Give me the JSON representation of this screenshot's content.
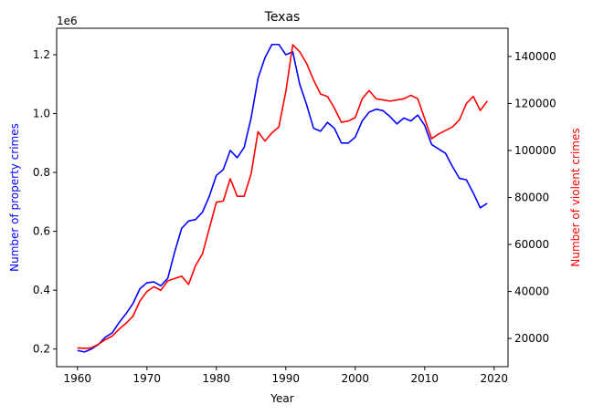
{
  "chart_data": {
    "type": "line",
    "title": "Texas",
    "xlabel": "Year",
    "ylabel_left": "Number of property crimes",
    "ylabel_right": "Number of violent crimes",
    "left_axis_offset_text": "1e6",
    "left_color": "#0000ff",
    "right_color": "#ff0000",
    "xlim": [
      1957,
      2022
    ],
    "ylim_left": [
      0.14,
      1.29
    ],
    "ylim_right": [
      8000,
      152000
    ],
    "xticks": [
      1960,
      1970,
      1980,
      1990,
      2000,
      2010,
      2020
    ],
    "xtick_labels": [
      "1960",
      "1970",
      "1980",
      "1990",
      "2000",
      "2010",
      "2020"
    ],
    "yticks_left": [
      0.2,
      0.4,
      0.6,
      0.8,
      1.0,
      1.2
    ],
    "ytick_labels_left": [
      "0.2",
      "0.4",
      "0.6",
      "0.8",
      "1.0",
      "1.2"
    ],
    "yticks_right": [
      20000,
      40000,
      60000,
      80000,
      100000,
      120000,
      140000
    ],
    "ytick_labels_right": [
      "20000",
      "40000",
      "60000",
      "80000",
      "100000",
      "120000",
      "140000"
    ],
    "grid": false,
    "x": [
      1960,
      1961,
      1962,
      1963,
      1964,
      1965,
      1966,
      1967,
      1968,
      1969,
      1970,
      1971,
      1972,
      1973,
      1974,
      1975,
      1976,
      1977,
      1978,
      1979,
      1980,
      1981,
      1982,
      1983,
      1984,
      1985,
      1986,
      1987,
      1988,
      1989,
      1990,
      1991,
      1992,
      1993,
      1994,
      1995,
      1996,
      1997,
      1998,
      1999,
      2000,
      2001,
      2002,
      2003,
      2004,
      2005,
      2006,
      2007,
      2008,
      2009,
      2010,
      2011,
      2012,
      2013,
      2014,
      2015,
      2016,
      2017,
      2018,
      2019
    ],
    "series": [
      {
        "axis": "left",
        "color": "#0000ff",
        "values": [
          0.195,
          0.19,
          0.2,
          0.215,
          0.24,
          0.255,
          0.29,
          0.32,
          0.355,
          0.405,
          0.425,
          0.428,
          0.415,
          0.44,
          0.53,
          0.61,
          0.635,
          0.64,
          0.665,
          0.72,
          0.79,
          0.81,
          0.875,
          0.85,
          0.885,
          0.985,
          1.12,
          1.19,
          1.235,
          1.235,
          1.2,
          1.21,
          1.1,
          1.03,
          0.95,
          0.94,
          0.97,
          0.95,
          0.9,
          0.9,
          0.92,
          0.975,
          1.005,
          1.015,
          1.01,
          0.99,
          0.965,
          0.985,
          0.975,
          0.995,
          0.96,
          0.895,
          0.88,
          0.865,
          0.82,
          0.78,
          0.775,
          0.73,
          0.68,
          0.695
        ]
      },
      {
        "axis": "right",
        "color": "#ff0000",
        "values": [
          16000,
          15800,
          16000,
          17500,
          19500,
          21000,
          24000,
          26500,
          29500,
          36000,
          40000,
          42000,
          40500,
          44500,
          45500,
          46500,
          43000,
          51000,
          56000,
          67000,
          78000,
          78500,
          88000,
          80500,
          80500,
          90000,
          108000,
          104000,
          107500,
          110000,
          125000,
          145000,
          142000,
          137000,
          130000,
          124000,
          123000,
          118000,
          112000,
          112500,
          114000,
          122000,
          125500,
          122000,
          121500,
          121000,
          121500,
          122000,
          123500,
          122000,
          113500,
          105000,
          107000,
          108500,
          110000,
          113000,
          120000,
          123000,
          117000,
          121000
        ]
      }
    ]
  }
}
